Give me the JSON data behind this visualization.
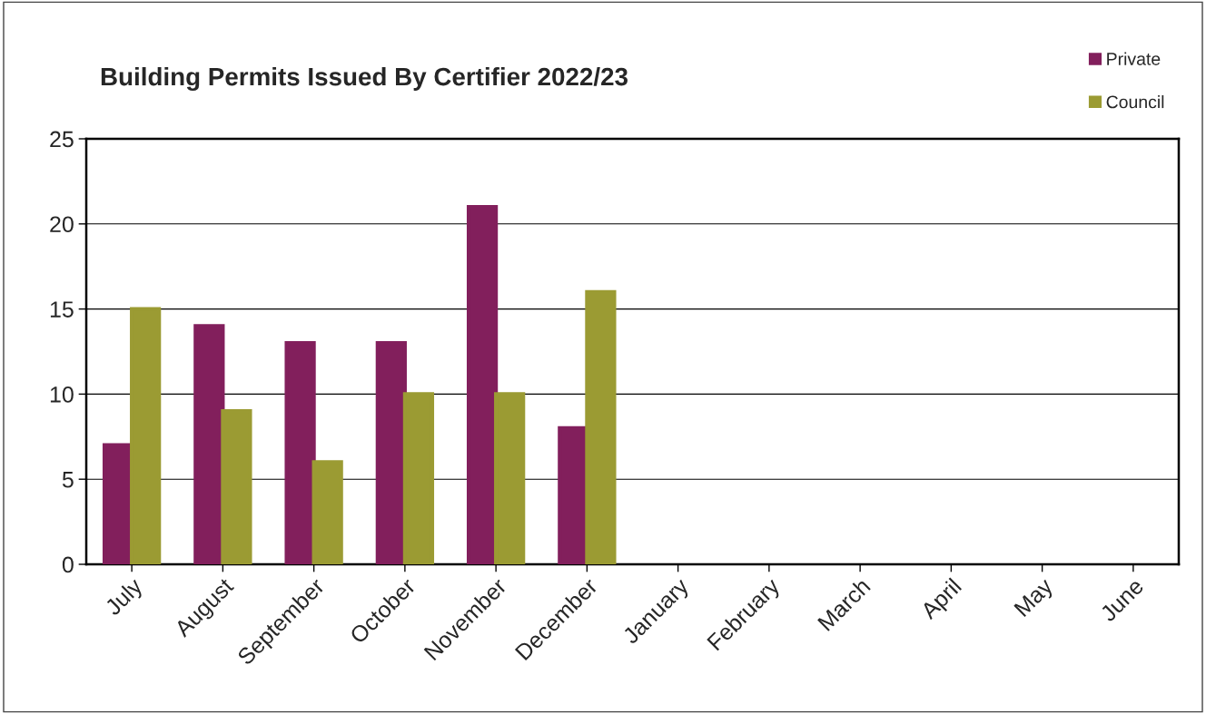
{
  "chart_data": {
    "type": "bar",
    "title": "Building Permits Issued By Certifier 2022/23",
    "categories": [
      "July",
      "August",
      "September",
      "October",
      "November",
      "December",
      "January",
      "February",
      "March",
      "April",
      "May",
      "June"
    ],
    "series": [
      {
        "name": "Private",
        "color": "#821f5c",
        "values": [
          7,
          14,
          13,
          13,
          21,
          8,
          null,
          null,
          null,
          null,
          null,
          null
        ]
      },
      {
        "name": "Council",
        "color": "#9b9b33",
        "values": [
          15,
          9,
          6,
          10,
          10,
          16,
          null,
          null,
          null,
          null,
          null,
          null
        ]
      }
    ],
    "ylim": [
      0,
      25
    ],
    "yticks": [
      0,
      5,
      10,
      15,
      20,
      25
    ],
    "grid": "y",
    "legend": "top right"
  }
}
